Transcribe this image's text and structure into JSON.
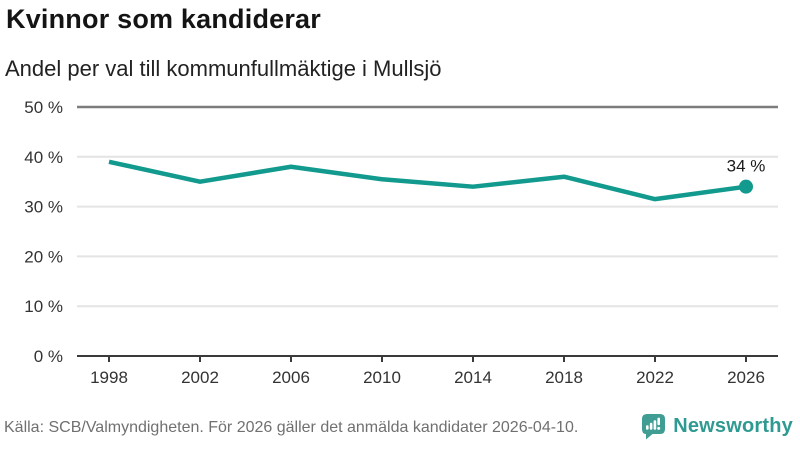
{
  "header": {
    "title": "Kvinnor som kandiderar",
    "subtitle": "Andel per val till kommunfullmäktige i Mullsjö"
  },
  "chart_data": {
    "type": "line",
    "title": "Kvinnor som kandiderar",
    "subtitle": "Andel per val till kommunfullmäktige i Mullsjö",
    "categories": [
      "1998",
      "2002",
      "2006",
      "2010",
      "2014",
      "2018",
      "2022",
      "2026"
    ],
    "values": [
      39,
      35,
      38,
      35.5,
      34,
      36,
      31.5,
      34
    ],
    "end_point_label": "34 %",
    "ylim": [
      0,
      50
    ],
    "ytick_labels": [
      "0 %",
      "10 %",
      "20 %",
      "30 %",
      "40 %",
      "50 %"
    ],
    "grid": "horizontal",
    "legend": "none"
  },
  "footer": {
    "source": "Källa: SCB/Valmyndigheten. För 2026 gäller det anmälda kandidater 2026-04-10.",
    "logo_text": "Newsworthy"
  },
  "colors": {
    "line": "#119a8d",
    "point": "#119a8d",
    "grid_light": "#e4e4e4",
    "grid_emphasis": "#7d7d7d",
    "axis": "#3a3a3a",
    "tick_text": "#333333",
    "label_text": "#1a1a1a",
    "logo": "#3f9d94",
    "logo_text": "#2f9a91"
  }
}
